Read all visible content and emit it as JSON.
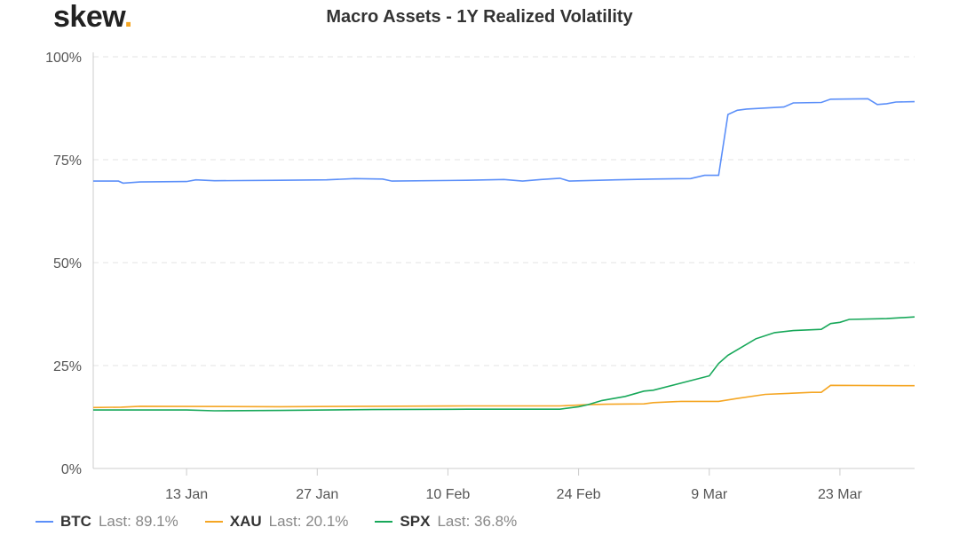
{
  "brand": {
    "name": "skew",
    "dot": "."
  },
  "chart_data": {
    "type": "line",
    "title": "Macro Assets - 1Y Realized Volatility",
    "xlabel": "",
    "ylabel": "",
    "ylim": [
      0,
      100
    ],
    "y_ticks": [
      "0%",
      "25%",
      "50%",
      "75%",
      "100%"
    ],
    "x_ticks": [
      {
        "day": 10,
        "label": "13 Jan"
      },
      {
        "day": 24,
        "label": "27 Jan"
      },
      {
        "day": 38,
        "label": "10 Feb"
      },
      {
        "day": 52,
        "label": "24 Feb"
      },
      {
        "day": 66,
        "label": "9 Mar"
      },
      {
        "day": 80,
        "label": "23 Mar"
      }
    ],
    "x_range_days": [
      0,
      88
    ],
    "x_note": "day 0 = 3 Jan",
    "grid": "horizontal dashed",
    "legend_position": "bottom-left",
    "series": [
      {
        "name": "BTC",
        "last_label": "Last: 89.1%",
        "color": "#5b8ff9",
        "points": [
          [
            0,
            69.8
          ],
          [
            2.7,
            69.8
          ],
          [
            3.2,
            69.3
          ],
          [
            5,
            69.6
          ],
          [
            10,
            69.7
          ],
          [
            11,
            70.1
          ],
          [
            13,
            69.9
          ],
          [
            20,
            70.0
          ],
          [
            25,
            70.1
          ],
          [
            28,
            70.4
          ],
          [
            31,
            70.3
          ],
          [
            32,
            69.8
          ],
          [
            40,
            70.0
          ],
          [
            44,
            70.2
          ],
          [
            46,
            69.8
          ],
          [
            48,
            70.2
          ],
          [
            50,
            70.5
          ],
          [
            51,
            69.8
          ],
          [
            56,
            70.1
          ],
          [
            60,
            70.3
          ],
          [
            64,
            70.4
          ],
          [
            65.5,
            71.2
          ],
          [
            67,
            71.2
          ],
          [
            68,
            86
          ],
          [
            69,
            87
          ],
          [
            70,
            87.3
          ],
          [
            74,
            87.8
          ],
          [
            75,
            88.8
          ],
          [
            78,
            88.9
          ],
          [
            79,
            89.7
          ],
          [
            83,
            89.8
          ],
          [
            84,
            88.4
          ],
          [
            85,
            88.6
          ],
          [
            86,
            89.0
          ],
          [
            88,
            89.1
          ]
        ]
      },
      {
        "name": "XAU",
        "last_label": "Last: 20.1%",
        "color": "#f5a623",
        "points": [
          [
            0,
            14.8
          ],
          [
            3,
            14.9
          ],
          [
            5,
            15.1
          ],
          [
            20,
            15.0
          ],
          [
            30,
            15.1
          ],
          [
            40,
            15.2
          ],
          [
            50,
            15.2
          ],
          [
            53,
            15.5
          ],
          [
            55,
            15.6
          ],
          [
            59,
            15.7
          ],
          [
            60,
            16.0
          ],
          [
            63,
            16.3
          ],
          [
            67,
            16.3
          ],
          [
            69,
            17.0
          ],
          [
            72,
            18.0
          ],
          [
            77,
            18.5
          ],
          [
            78,
            18.5
          ],
          [
            79,
            20.2
          ],
          [
            88,
            20.1
          ]
        ]
      },
      {
        "name": "SPX",
        "last_label": "Last: 36.8%",
        "color": "#18a85a",
        "points": [
          [
            0,
            14.2
          ],
          [
            10,
            14.2
          ],
          [
            13,
            14.0
          ],
          [
            20,
            14.1
          ],
          [
            30,
            14.3
          ],
          [
            40,
            14.4
          ],
          [
            50,
            14.4
          ],
          [
            52,
            15.0
          ],
          [
            53,
            15.5
          ],
          [
            54.5,
            16.5
          ],
          [
            57,
            17.5
          ],
          [
            59,
            18.8
          ],
          [
            60,
            19.0
          ],
          [
            66,
            22.5
          ],
          [
            67,
            25.5
          ],
          [
            68,
            27.5
          ],
          [
            71,
            31.5
          ],
          [
            73,
            33.0
          ],
          [
            75,
            33.5
          ],
          [
            78,
            33.8
          ],
          [
            79,
            35.2
          ],
          [
            80,
            35.5
          ],
          [
            81,
            36.2
          ],
          [
            85,
            36.4
          ],
          [
            88,
            36.8
          ]
        ]
      }
    ]
  }
}
